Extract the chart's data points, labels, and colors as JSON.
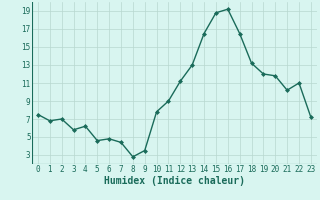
{
  "x": [
    0,
    1,
    2,
    3,
    4,
    5,
    6,
    7,
    8,
    9,
    10,
    11,
    12,
    13,
    14,
    15,
    16,
    17,
    18,
    19,
    20,
    21,
    22,
    23
  ],
  "y": [
    7.5,
    6.8,
    7.0,
    5.8,
    6.2,
    4.6,
    4.8,
    4.4,
    2.8,
    3.5,
    7.8,
    9.0,
    11.2,
    13.0,
    16.5,
    18.8,
    19.2,
    16.5,
    13.2,
    12.0,
    11.8,
    10.2,
    11.0,
    7.2
  ],
  "line_color": "#1a6b5a",
  "marker": "D",
  "marker_size": 2,
  "bg_color": "#d8f5f0",
  "grid_color": "#b8d8d0",
  "grid_color_minor": "#c8e8e0",
  "xlabel": "Humidex (Indice chaleur)",
  "ylim": [
    2,
    20
  ],
  "yticks": [
    3,
    5,
    7,
    9,
    11,
    13,
    15,
    17,
    19
  ],
  "xticks": [
    0,
    1,
    2,
    3,
    4,
    5,
    6,
    7,
    8,
    9,
    10,
    11,
    12,
    13,
    14,
    15,
    16,
    17,
    18,
    19,
    20,
    21,
    22,
    23
  ],
  "tick_color": "#1a6b5a",
  "tick_fontsize": 5.5,
  "xlabel_fontsize": 7,
  "linewidth": 1.0
}
